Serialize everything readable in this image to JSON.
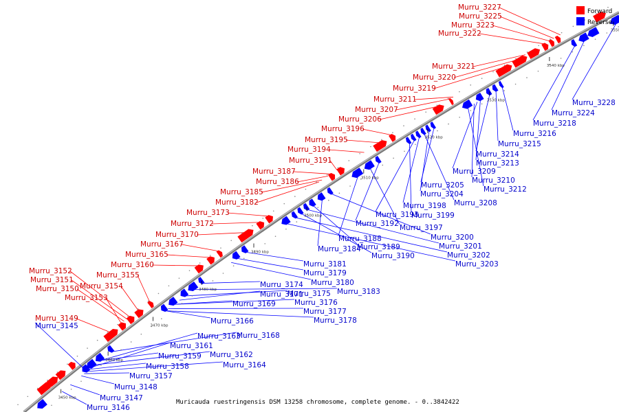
{
  "caption": "Muricauda ruestringensis DSM 13258 chromosome, complete genome. - 0..3842422",
  "colors": {
    "forward": "#ff0000",
    "reverse": "#0000ff",
    "forward_label": "#cc0000",
    "reverse_label": "#0000cc",
    "backbone": "#8a8a8a"
  },
  "legend": {
    "forward": "Forward",
    "reverse": "Reverse"
  },
  "ticks": [
    "3450 kbp",
    "3460 kbp",
    "3470 kbp",
    "3480 kbp",
    "3490 kbp",
    "3500 kbp",
    "3510 kbp",
    "3520 kbp",
    "3530 kbp",
    "3540 kbp",
    "3550 kbp"
  ],
  "forward_genes": [
    "Murru_3227",
    "Murru_3225",
    "Murru_3223",
    "Murru_3222",
    "Murru_3221",
    "Murru_3220",
    "Murru_3219",
    "Murru_3211",
    "Murru_3207",
    "Murru_3206",
    "Murru_3196",
    "Murru_3195",
    "Murru_3194",
    "Murru_3191",
    "Murru_3187",
    "Murru_3186",
    "Murru_3185",
    "Murru_3182",
    "Murru_3173",
    "Murru_3172",
    "Murru_3170",
    "Murru_3167",
    "Murru_3165",
    "Murru_3160",
    "Murru_3155",
    "Murru_3152",
    "Murru_3154",
    "Murru_3151",
    "Murru_3150",
    "Murru_3153",
    "Murru_3149"
  ],
  "reverse_genes": [
    "Murru_3145",
    "Murru_3228",
    "Murru_3224",
    "Murru_3218",
    "Murru_3216",
    "Murru_3215",
    "Murru_3214",
    "Murru_3213",
    "Murru_3209",
    "Murru_3210",
    "Murru_3212",
    "Murru_3205",
    "Murru_3204",
    "Murru_3208",
    "Murru_3198",
    "Murru_3193",
    "Murru_3199",
    "Murru_3192",
    "Murru_3197",
    "Murru_3188",
    "Murru_3200",
    "Murru_3184",
    "Murru_3189",
    "Murru_3201",
    "Murru_3190",
    "Murru_3202",
    "Murru_3203",
    "Murru_3181",
    "Murru_3179",
    "Murru_3180",
    "Murru_3174",
    "Murru_3183",
    "Murru_3175",
    "Murru_3171",
    "Murru_3169",
    "Murru_3176",
    "Murru_3177",
    "Murru_3178",
    "Murru_3166",
    "Murru_3168",
    "Murru_3163",
    "Murru_3161",
    "Murru_3159",
    "Murru_3162",
    "Murru_3158",
    "Murru_3164",
    "Murru_3157",
    "Murru_3148",
    "Murru_3147",
    "Murru_3146"
  ]
}
